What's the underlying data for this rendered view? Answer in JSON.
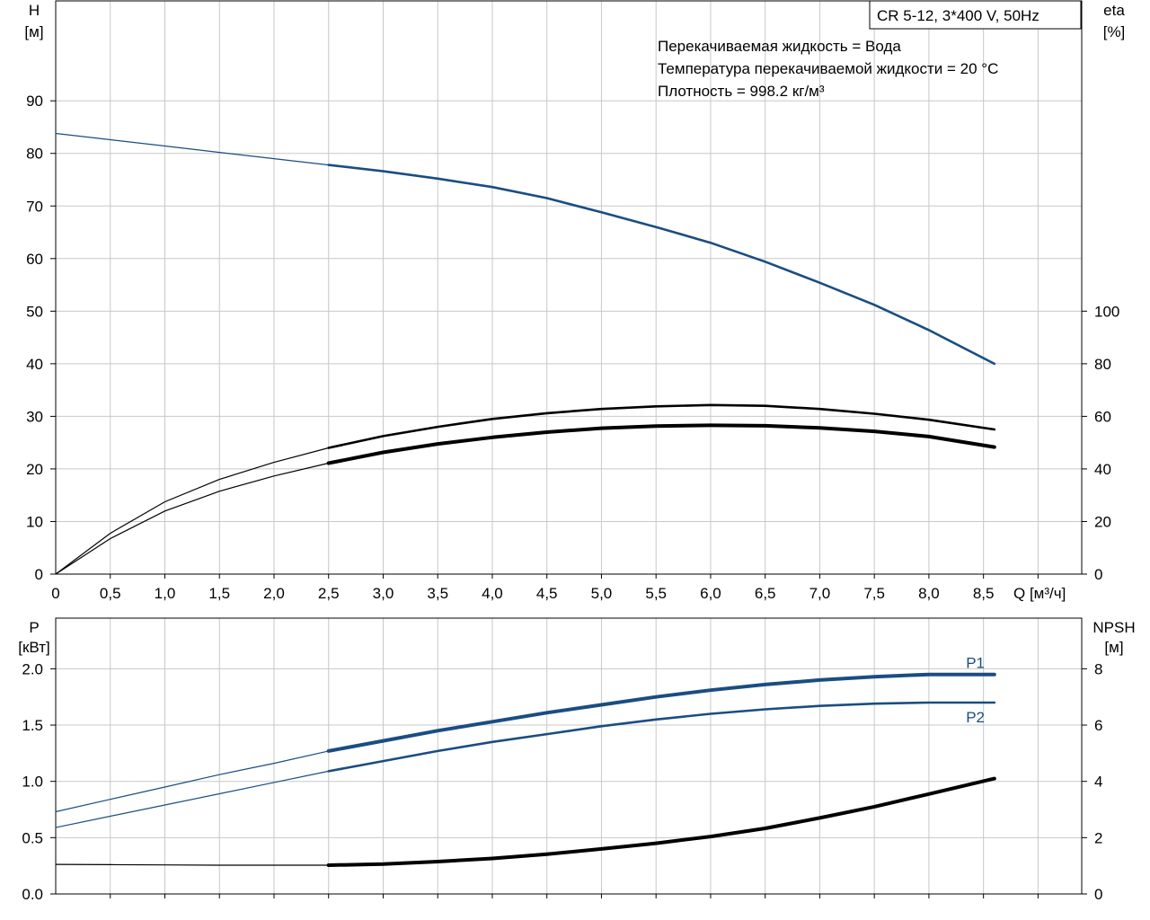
{
  "chart_data": [
    {
      "type": "line",
      "title": "CR 5-12, 3*400 V, 50Hz",
      "annotations": [
        "Перекачиваемая жидкость = Вода",
        "Температура перекачиваемой жидкости = 20 °C",
        "Плотность = 998.2 кг/м³"
      ],
      "xlabel": "Q [м³/ч]",
      "ylabel_left": {
        "line1": "H",
        "line2": "[м]"
      },
      "ylabel_right": {
        "line1": "eta",
        "line2": "[%]"
      },
      "x_ticks": [
        "0",
        "0,5",
        "1,0",
        "1,5",
        "2,0",
        "2,5",
        "3,0",
        "3,5",
        "4,0",
        "4,5",
        "5,0",
        "5,5",
        "6,0",
        "6,5",
        "7,0",
        "7,5",
        "8,0",
        "8,5"
      ],
      "y_left_ticks": [
        "0",
        "10",
        "20",
        "30",
        "40",
        "50",
        "60",
        "70",
        "80",
        "90"
      ],
      "y_right_ticks": [
        "0",
        "20",
        "40",
        "60",
        "80",
        "100"
      ],
      "xlim": [
        0,
        9.4
      ],
      "ylim_left": [
        0,
        109
      ],
      "ylim_right": [
        0,
        218
      ],
      "grid": true,
      "series": [
        {
          "axis": "left",
          "color": "#1a4d82",
          "points": [
            [
              0,
              83.8
            ],
            [
              0.5,
              82.6
            ],
            [
              1.0,
              81.4
            ],
            [
              1.5,
              80.2
            ],
            [
              2.0,
              79.0
            ],
            [
              2.5,
              77.8
            ],
            [
              3.0,
              76.6
            ],
            [
              3.5,
              75.2
            ],
            [
              4.0,
              73.6
            ],
            [
              4.5,
              71.5
            ],
            [
              5.0,
              68.8
            ],
            [
              5.5,
              66.0
            ],
            [
              6.0,
              63.0
            ],
            [
              6.5,
              59.4
            ],
            [
              7.0,
              55.4
            ],
            [
              7.5,
              51.2
            ],
            [
              8.0,
              46.4
            ],
            [
              8.6,
              40.0
            ]
          ],
          "bold_from": 2.5
        },
        {
          "axis": "right",
          "color": "#000000",
          "points": [
            [
              0,
              0
            ],
            [
              0.5,
              15.5
            ],
            [
              1.0,
              27.5
            ],
            [
              1.5,
              36.0
            ],
            [
              2.0,
              42.5
            ],
            [
              2.5,
              48.0
            ],
            [
              3.0,
              52.5
            ],
            [
              3.5,
              56.0
            ],
            [
              4.0,
              59.0
            ],
            [
              4.5,
              61.2
            ],
            [
              5.0,
              62.8
            ],
            [
              5.5,
              63.8
            ],
            [
              6.0,
              64.3
            ],
            [
              6.5,
              64.0
            ],
            [
              7.0,
              62.8
            ],
            [
              7.5,
              61.0
            ],
            [
              8.0,
              58.7
            ],
            [
              8.6,
              55.0
            ]
          ],
          "bold_from": 2.5
        },
        {
          "axis": "right",
          "color": "#000000",
          "points": [
            [
              0,
              0
            ],
            [
              0.5,
              13.5
            ],
            [
              1.0,
              24.0
            ],
            [
              1.5,
              31.5
            ],
            [
              2.0,
              37.3
            ],
            [
              2.5,
              42.2
            ],
            [
              3.0,
              46.3
            ],
            [
              3.5,
              49.5
            ],
            [
              4.0,
              52.0
            ],
            [
              4.5,
              54.0
            ],
            [
              5.0,
              55.5
            ],
            [
              5.5,
              56.3
            ],
            [
              6.0,
              56.6
            ],
            [
              6.5,
              56.4
            ],
            [
              7.0,
              55.6
            ],
            [
              7.5,
              54.3
            ],
            [
              8.0,
              52.3
            ],
            [
              8.6,
              48.3
            ]
          ],
          "bold_from": 2.5,
          "thick": true
        }
      ]
    },
    {
      "type": "line",
      "xlabel": "",
      "ylabel_left": {
        "line1": "P",
        "line2": "[кВт]"
      },
      "ylabel_right": {
        "line1": "NPSH",
        "line2": "[м]"
      },
      "y_left_ticks": [
        "0.0",
        "0.5",
        "1.0",
        "1.5",
        "2.0"
      ],
      "y_right_ticks": [
        "0",
        "2",
        "4",
        "6",
        "8"
      ],
      "xlim": [
        0,
        9.4
      ],
      "ylim_left": [
        0,
        2.45
      ],
      "ylim_right": [
        0,
        9.8
      ],
      "grid": true,
      "series": [
        {
          "name": "P1",
          "axis": "left",
          "color": "#1a4d82",
          "thick": true,
          "points": [
            [
              0,
              0.73
            ],
            [
              0.5,
              0.84
            ],
            [
              1.0,
              0.95
            ],
            [
              1.5,
              1.06
            ],
            [
              2.0,
              1.16
            ],
            [
              2.5,
              1.27
            ],
            [
              3.0,
              1.36
            ],
            [
              3.5,
              1.45
            ],
            [
              4.0,
              1.53
            ],
            [
              4.5,
              1.61
            ],
            [
              5.0,
              1.68
            ],
            [
              5.5,
              1.75
            ],
            [
              6.0,
              1.81
            ],
            [
              6.5,
              1.86
            ],
            [
              7.0,
              1.9
            ],
            [
              7.5,
              1.93
            ],
            [
              8.0,
              1.95
            ],
            [
              8.6,
              1.95
            ]
          ],
          "bold_from": 2.5
        },
        {
          "name": "P2",
          "axis": "left",
          "color": "#1a4d82",
          "points": [
            [
              0,
              0.59
            ],
            [
              0.5,
              0.69
            ],
            [
              1.0,
              0.79
            ],
            [
              1.5,
              0.89
            ],
            [
              2.0,
              0.99
            ],
            [
              2.5,
              1.09
            ],
            [
              3.0,
              1.18
            ],
            [
              3.5,
              1.27
            ],
            [
              4.0,
              1.35
            ],
            [
              4.5,
              1.42
            ],
            [
              5.0,
              1.49
            ],
            [
              5.5,
              1.55
            ],
            [
              6.0,
              1.6
            ],
            [
              6.5,
              1.64
            ],
            [
              7.0,
              1.67
            ],
            [
              7.5,
              1.69
            ],
            [
              8.0,
              1.7
            ],
            [
              8.6,
              1.7
            ]
          ],
          "bold_from": 2.5
        },
        {
          "axis": "right",
          "color": "#000000",
          "thick": true,
          "points": [
            [
              0,
              1.05
            ],
            [
              0.5,
              1.04
            ],
            [
              1.0,
              1.03
            ],
            [
              1.5,
              1.02
            ],
            [
              2.0,
              1.02
            ],
            [
              2.5,
              1.02
            ],
            [
              3.0,
              1.06
            ],
            [
              3.5,
              1.15
            ],
            [
              4.0,
              1.26
            ],
            [
              4.5,
              1.41
            ],
            [
              5.0,
              1.6
            ],
            [
              5.5,
              1.8
            ],
            [
              6.0,
              2.04
            ],
            [
              6.5,
              2.33
            ],
            [
              7.0,
              2.7
            ],
            [
              7.5,
              3.1
            ],
            [
              8.0,
              3.55
            ],
            [
              8.6,
              4.1
            ]
          ],
          "bold_from": 2.5
        }
      ]
    }
  ]
}
